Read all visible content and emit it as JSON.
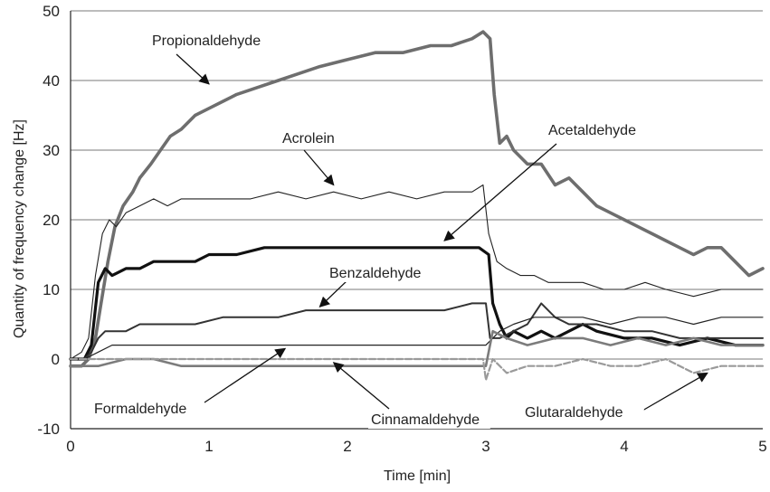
{
  "chart_data": {
    "type": "line",
    "xlabel": "Time [min]",
    "ylabel": "Quantity of frequency change [Hz]",
    "xlim": [
      0,
      5
    ],
    "ylim": [
      -10,
      50
    ],
    "x_ticks": [
      0,
      1,
      2,
      3,
      4,
      5
    ],
    "y_ticks": [
      -10,
      0,
      10,
      20,
      30,
      40,
      50
    ],
    "grid": "horizontal",
    "series": [
      {
        "name": "Propionaldehyde",
        "color": "#6e6e6e",
        "x": [
          0,
          0.08,
          0.13,
          0.18,
          0.22,
          0.27,
          0.32,
          0.38,
          0.45,
          0.5,
          0.58,
          0.65,
          0.72,
          0.8,
          0.9,
          1.0,
          1.1,
          1.2,
          1.35,
          1.5,
          1.65,
          1.8,
          2.0,
          2.2,
          2.4,
          2.6,
          2.75,
          2.9,
          2.98,
          3.03,
          3.06,
          3.1,
          3.15,
          3.2,
          3.3,
          3.4,
          3.5,
          3.6,
          3.7,
          3.8,
          3.9,
          4.0,
          4.1,
          4.2,
          4.3,
          4.4,
          4.5,
          4.6,
          4.7,
          4.8,
          4.9,
          5.0
        ],
        "y": [
          -1,
          -1,
          0,
          3,
          8,
          14,
          19,
          22,
          24,
          26,
          28,
          30,
          32,
          33,
          35,
          36,
          37,
          38,
          39,
          40,
          41,
          42,
          43,
          44,
          44,
          45,
          45,
          46,
          47,
          46,
          38,
          31,
          32,
          30,
          28,
          28,
          25,
          26,
          24,
          22,
          21,
          20,
          19,
          18,
          17,
          16,
          15,
          16,
          16,
          14,
          12,
          13
        ]
      },
      {
        "name": "Acrolein",
        "color": "#222222",
        "x": [
          0,
          0.08,
          0.13,
          0.18,
          0.23,
          0.28,
          0.33,
          0.4,
          0.5,
          0.6,
          0.7,
          0.8,
          0.9,
          1.0,
          1.1,
          1.2,
          1.3,
          1.5,
          1.7,
          1.9,
          2.1,
          2.3,
          2.5,
          2.7,
          2.9,
          2.98,
          3.02,
          3.08,
          3.15,
          3.25,
          3.35,
          3.45,
          3.55,
          3.7,
          3.85,
          4.0,
          4.15,
          4.3,
          4.5,
          4.7,
          4.85,
          5.0
        ],
        "y": [
          0,
          1,
          3,
          12,
          18,
          20,
          19,
          21,
          22,
          23,
          22,
          23,
          23,
          23,
          23,
          23,
          23,
          24,
          23,
          24,
          23,
          24,
          23,
          24,
          24,
          25,
          18,
          14,
          13,
          12,
          12,
          11,
          11,
          11,
          10,
          10,
          11,
          10,
          9,
          10,
          10,
          10
        ]
      },
      {
        "name": "Acetaldehyde",
        "color": "#111111",
        "x": [
          0,
          0.1,
          0.15,
          0.2,
          0.25,
          0.3,
          0.4,
          0.5,
          0.6,
          0.7,
          0.8,
          0.9,
          1.0,
          1.2,
          1.4,
          1.6,
          1.8,
          2.0,
          2.2,
          2.4,
          2.6,
          2.8,
          2.95,
          3.02,
          3.05,
          3.1,
          3.15,
          3.2,
          3.3,
          3.4,
          3.5,
          3.6,
          3.7,
          3.8,
          4.0,
          4.2,
          4.4,
          4.6,
          4.8,
          5.0
        ],
        "y": [
          0,
          0,
          2,
          11,
          13,
          12,
          13,
          13,
          14,
          14,
          14,
          14,
          15,
          15,
          16,
          16,
          16,
          16,
          16,
          16,
          16,
          16,
          16,
          15,
          8,
          5,
          3,
          4,
          3,
          4,
          3,
          4,
          5,
          4,
          3,
          3,
          2,
          3,
          2,
          2
        ]
      },
      {
        "name": "Benzaldehyde",
        "color": "#333333",
        "x": [
          0,
          0.1,
          0.15,
          0.2,
          0.25,
          0.3,
          0.4,
          0.5,
          0.7,
          0.9,
          1.1,
          1.3,
          1.5,
          1.7,
          1.9,
          2.1,
          2.3,
          2.5,
          2.7,
          2.9,
          3.0,
          3.03,
          3.1,
          3.2,
          3.3,
          3.4,
          3.5,
          3.6,
          3.8,
          4.0,
          4.2,
          4.4,
          4.6,
          4.8,
          5.0
        ],
        "y": [
          0,
          0,
          1,
          3,
          4,
          4,
          4,
          5,
          5,
          5,
          6,
          6,
          6,
          7,
          7,
          7,
          7,
          7,
          7,
          8,
          8,
          3,
          3,
          4,
          5,
          8,
          6,
          5,
          5,
          4,
          4,
          3,
          3,
          3,
          3
        ]
      },
      {
        "name": "Formaldehyde",
        "color": "#222222",
        "x": [
          0,
          0.1,
          0.2,
          0.3,
          0.5,
          0.7,
          0.9,
          1.1,
          1.3,
          1.5,
          1.7,
          1.9,
          2.1,
          2.3,
          2.5,
          2.7,
          2.9,
          3.0,
          3.1,
          3.2,
          3.35,
          3.5,
          3.7,
          3.9,
          4.1,
          4.3,
          4.5,
          4.7,
          4.9,
          5.0
        ],
        "y": [
          0,
          0,
          1,
          2,
          2,
          2,
          2,
          2,
          2,
          2,
          2,
          2,
          2,
          2,
          2,
          2,
          2,
          2,
          4,
          5,
          6,
          6,
          6,
          5,
          6,
          6,
          5,
          6,
          6,
          6
        ]
      },
      {
        "name": "Cinnamaldehyde",
        "color": "#7c7c7c",
        "x": [
          0,
          0.1,
          0.2,
          0.4,
          0.6,
          0.8,
          1.0,
          1.2,
          1.4,
          1.6,
          1.8,
          2.0,
          2.2,
          2.4,
          2.6,
          2.8,
          3.0,
          3.05,
          3.15,
          3.3,
          3.5,
          3.7,
          3.9,
          4.1,
          4.3,
          4.5,
          4.7,
          4.9,
          5.0
        ],
        "y": [
          -1,
          -1,
          -1,
          0,
          0,
          -1,
          -1,
          -1,
          -1,
          -1,
          -1,
          -1,
          -1,
          -1,
          -1,
          -1,
          -1,
          4,
          3,
          2,
          3,
          3,
          2,
          3,
          2,
          3,
          2,
          2,
          2
        ]
      },
      {
        "name": "Glutaraldehyde",
        "color": "#9a9a9a",
        "x": [
          0,
          0.2,
          0.4,
          0.6,
          0.8,
          1.0,
          1.2,
          1.4,
          1.6,
          1.8,
          2.0,
          2.2,
          2.4,
          2.6,
          2.8,
          2.98,
          3.0,
          3.05,
          3.15,
          3.3,
          3.5,
          3.7,
          3.9,
          4.1,
          4.3,
          4.5,
          4.7,
          4.9,
          5.0
        ],
        "y": [
          0,
          0,
          0,
          0,
          0,
          0,
          0,
          0,
          0,
          0,
          0,
          0,
          0,
          0,
          0,
          0,
          -3,
          0,
          -2,
          -1,
          -1,
          0,
          -1,
          -1,
          0,
          -2,
          -1,
          -1,
          -1
        ]
      }
    ],
    "annotations": [
      {
        "text": "Propionaldehyde",
        "series": "Propionaldehyde",
        "target_x": 1.0,
        "target_y": 39.5
      },
      {
        "text": "Acrolein",
        "series": "Acrolein",
        "target_x": 1.9,
        "target_y": 25
      },
      {
        "text": "Acetaldehyde",
        "series": "Acetaldehyde",
        "target_x": 2.7,
        "target_y": 17
      },
      {
        "text": "Benzaldehyde",
        "series": "Benzaldehyde",
        "target_x": 1.8,
        "target_y": 7.5
      },
      {
        "text": "Formaldehyde",
        "series": "Formaldehyde",
        "target_x": 1.55,
        "target_y": 1.5
      },
      {
        "text": "Cinnamaldehyde",
        "series": "Cinnamaldehyde",
        "target_x": 1.9,
        "target_y": -0.5
      },
      {
        "text": "Glutaraldehyde",
        "series": "Glutaraldehyde",
        "target_x": 4.6,
        "target_y": -2
      }
    ]
  }
}
